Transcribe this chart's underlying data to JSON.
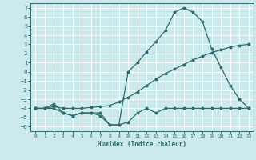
{
  "xlabel": "Humidex (Indice chaleur)",
  "bg_color": "#cce9ec",
  "grid_color": "#ffffff",
  "line_color": "#2e6b6b",
  "xlim": [
    -0.5,
    23.5
  ],
  "ylim": [
    -6.5,
    7.5
  ],
  "xticks": [
    0,
    1,
    2,
    3,
    4,
    5,
    6,
    7,
    8,
    9,
    10,
    11,
    12,
    13,
    14,
    15,
    16,
    17,
    18,
    19,
    20,
    21,
    22,
    23
  ],
  "yticks": [
    -6,
    -5,
    -4,
    -3,
    -2,
    -1,
    0,
    1,
    2,
    3,
    4,
    5,
    6,
    7
  ],
  "line1_x": [
    0,
    1,
    2,
    3,
    4,
    5,
    6,
    7,
    8,
    9,
    10,
    11,
    12,
    13,
    14,
    15,
    16,
    17,
    18,
    19,
    20,
    21,
    22,
    23
  ],
  "line1_y": [
    -4,
    -4,
    -3.5,
    -4.5,
    -4.8,
    -4.5,
    -4.5,
    -4.8,
    -5.8,
    -5.8,
    -5.5,
    -4.5,
    -4.0,
    -4.5,
    -4,
    -4,
    -4,
    -4,
    -4,
    -4,
    -4,
    -4,
    -4,
    -4
  ],
  "line2_x": [
    0,
    1,
    2,
    3,
    4,
    5,
    6,
    7,
    8,
    9,
    10,
    11,
    12,
    13,
    14,
    15,
    16,
    17,
    18,
    19,
    20,
    21,
    22,
    23
  ],
  "line2_y": [
    -4,
    -4,
    -3.8,
    -4,
    -4,
    -4,
    -3.9,
    -3.8,
    -3.7,
    -3.3,
    -2.8,
    -2.2,
    -1.5,
    -0.8,
    -0.2,
    0.3,
    0.8,
    1.3,
    1.7,
    2.1,
    2.4,
    2.7,
    2.9,
    3.0
  ],
  "line3_x": [
    0,
    1,
    2,
    3,
    4,
    5,
    6,
    7,
    8,
    9,
    10,
    11,
    12,
    13,
    14,
    15,
    16,
    17,
    18,
    19,
    20,
    21,
    22,
    23
  ],
  "line3_y": [
    -4,
    -4,
    -4,
    -4.5,
    -4.8,
    -4.5,
    -4.5,
    -4.5,
    -5.8,
    -5.8,
    0,
    1,
    2.2,
    3.3,
    4.5,
    6.5,
    7,
    6.5,
    5.5,
    2.5,
    0.5,
    -1.5,
    -3,
    -4
  ]
}
